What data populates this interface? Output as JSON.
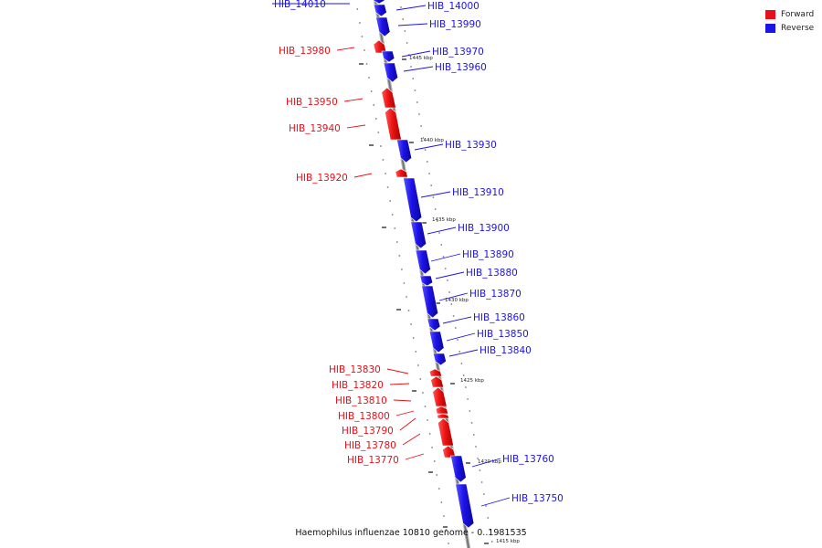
{
  "legend": {
    "forward_label": "Forward",
    "reverse_label": "Reverse",
    "forward_color": "#e8101a",
    "reverse_color": "#1c13e8"
  },
  "footer": {
    "title": "Haemophilus influenzae 10810 genome - 0..1981535"
  },
  "scale": {
    "labels": [
      "1445 kbp",
      "1440 kbp",
      "1435 kbp",
      "1430 kbp",
      "1425 kbp",
      "1420 kbp",
      "1415 kbp"
    ]
  },
  "genes": [
    {
      "name": "HIB_14010",
      "strand": "reverse"
    },
    {
      "name": "HIB_14000",
      "strand": "reverse"
    },
    {
      "name": "HIB_13990",
      "strand": "reverse"
    },
    {
      "name": "HIB_13980",
      "strand": "forward"
    },
    {
      "name": "HIB_13970",
      "strand": "reverse"
    },
    {
      "name": "HIB_13960",
      "strand": "reverse"
    },
    {
      "name": "HIB_13950",
      "strand": "forward"
    },
    {
      "name": "HIB_13940",
      "strand": "forward"
    },
    {
      "name": "HIB_13930",
      "strand": "reverse"
    },
    {
      "name": "HIB_13920",
      "strand": "forward"
    },
    {
      "name": "HIB_13910",
      "strand": "reverse"
    },
    {
      "name": "HIB_13900",
      "strand": "reverse"
    },
    {
      "name": "HIB_13890",
      "strand": "reverse"
    },
    {
      "name": "HIB_13880",
      "strand": "reverse"
    },
    {
      "name": "HIB_13870",
      "strand": "reverse"
    },
    {
      "name": "HIB_13860",
      "strand": "reverse"
    },
    {
      "name": "HIB_13850",
      "strand": "reverse"
    },
    {
      "name": "HIB_13840",
      "strand": "reverse"
    },
    {
      "name": "HIB_13830",
      "strand": "forward"
    },
    {
      "name": "HIB_13820",
      "strand": "forward"
    },
    {
      "name": "HIB_13810",
      "strand": "forward"
    },
    {
      "name": "HIB_13800",
      "strand": "forward"
    },
    {
      "name": "HIB_13790",
      "strand": "forward"
    },
    {
      "name": "HIB_13780",
      "strand": "forward"
    },
    {
      "name": "HIB_13770",
      "strand": "forward"
    },
    {
      "name": "HIB_13760",
      "strand": "reverse"
    },
    {
      "name": "HIB_13750",
      "strand": "reverse"
    }
  ]
}
